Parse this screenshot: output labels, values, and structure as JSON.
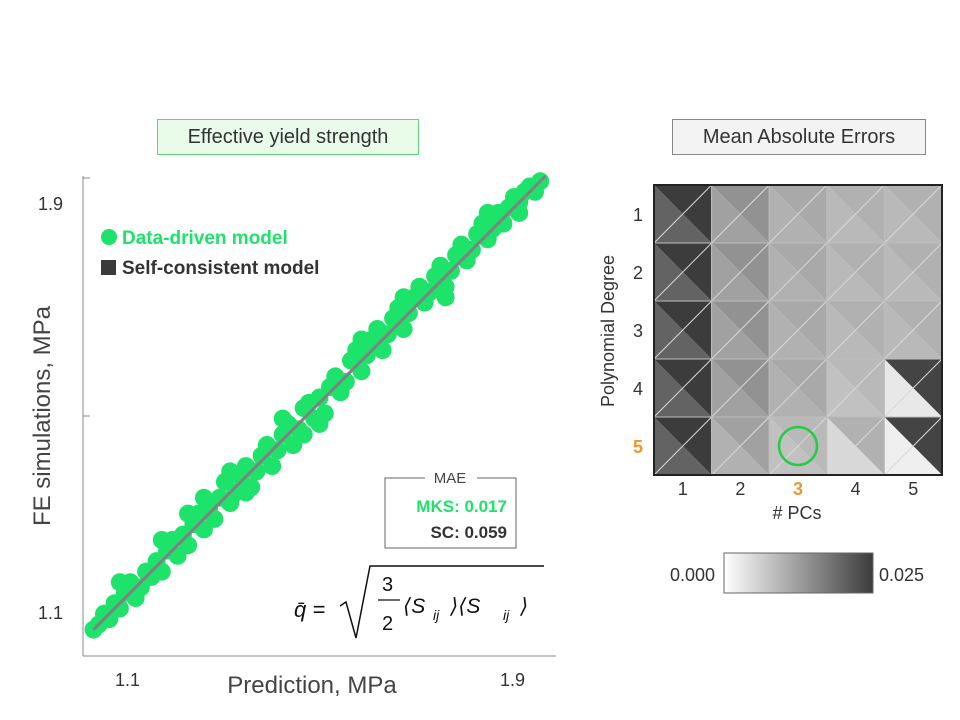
{
  "chart_data": [
    {
      "type": "scatter",
      "title": "Effective yield strength",
      "xlabel": "Prediction, MPa",
      "ylabel": "FE simulations, MPa",
      "xlim": [
        1.05,
        1.95
      ],
      "ylim": [
        1.02,
        1.93
      ],
      "x_ticks": [
        "1.1",
        "1.9"
      ],
      "y_ticks": [
        "1.1",
        "1.9"
      ],
      "legend": {
        "position": "top-left",
        "entries": [
          {
            "label": "Data-driven model",
            "color": "#1ee36b",
            "marker": "circle"
          },
          {
            "label": "Self-consistent model",
            "color": "#3a3a3a",
            "marker": "square"
          }
        ]
      },
      "mae_box": {
        "title": "MAE",
        "mks": "MKS: 0.017",
        "sc": "SC: 0.059"
      },
      "formula": {
        "lhs": "q̄ =",
        "num": "3",
        "den": "2",
        "body": "⟨S",
        "sub": "ij",
        "mid": "⟩⟨S",
        "sub2": "ij",
        "end": "⟩"
      },
      "fit_line": {
        "x": [
          1.07,
          1.93
        ],
        "y": [
          1.07,
          1.93
        ],
        "color": "#808080"
      },
      "series": [
        {
          "name": "Data-driven model",
          "color": "#1ee36b",
          "points": [
            [
              1.07,
              1.07
            ],
            [
              1.08,
              1.08
            ],
            [
              1.09,
              1.1
            ],
            [
              1.1,
              1.09
            ],
            [
              1.11,
              1.12
            ],
            [
              1.12,
              1.11
            ],
            [
              1.13,
              1.14
            ],
            [
              1.14,
              1.16
            ],
            [
              1.15,
              1.13
            ],
            [
              1.16,
              1.15
            ],
            [
              1.17,
              1.18
            ],
            [
              1.18,
              1.17
            ],
            [
              1.19,
              1.2
            ],
            [
              1.2,
              1.18
            ],
            [
              1.21,
              1.22
            ],
            [
              1.22,
              1.24
            ],
            [
              1.23,
              1.21
            ],
            [
              1.24,
              1.25
            ],
            [
              1.25,
              1.23
            ],
            [
              1.26,
              1.27
            ],
            [
              1.27,
              1.29
            ],
            [
              1.28,
              1.26
            ],
            [
              1.29,
              1.3
            ],
            [
              1.3,
              1.28
            ],
            [
              1.31,
              1.32
            ],
            [
              1.32,
              1.35
            ],
            [
              1.33,
              1.31
            ],
            [
              1.34,
              1.33
            ],
            [
              1.35,
              1.36
            ],
            [
              1.36,
              1.38
            ],
            [
              1.37,
              1.34
            ],
            [
              1.38,
              1.37
            ],
            [
              1.39,
              1.4
            ],
            [
              1.4,
              1.42
            ],
            [
              1.41,
              1.38
            ],
            [
              1.42,
              1.41
            ],
            [
              1.43,
              1.44
            ],
            [
              1.44,
              1.46
            ],
            [
              1.45,
              1.42
            ],
            [
              1.46,
              1.45
            ],
            [
              1.47,
              1.49
            ],
            [
              1.48,
              1.5
            ],
            [
              1.49,
              1.47
            ],
            [
              1.5,
              1.51
            ],
            [
              1.51,
              1.48
            ],
            [
              1.52,
              1.53
            ],
            [
              1.53,
              1.55
            ],
            [
              1.54,
              1.52
            ],
            [
              1.55,
              1.54
            ],
            [
              1.56,
              1.58
            ],
            [
              1.57,
              1.6
            ],
            [
              1.58,
              1.56
            ],
            [
              1.59,
              1.59
            ],
            [
              1.6,
              1.62
            ],
            [
              1.61,
              1.64
            ],
            [
              1.62,
              1.6
            ],
            [
              1.63,
              1.63
            ],
            [
              1.64,
              1.66
            ],
            [
              1.65,
              1.68
            ],
            [
              1.66,
              1.64
            ],
            [
              1.67,
              1.67
            ],
            [
              1.68,
              1.7
            ],
            [
              1.69,
              1.72
            ],
            [
              1.7,
              1.69
            ],
            [
              1.71,
              1.71
            ],
            [
              1.72,
              1.74
            ],
            [
              1.73,
              1.76
            ],
            [
              1.74,
              1.72
            ],
            [
              1.75,
              1.75
            ],
            [
              1.76,
              1.78
            ],
            [
              1.77,
              1.8
            ],
            [
              1.78,
              1.77
            ],
            [
              1.79,
              1.79
            ],
            [
              1.8,
              1.82
            ],
            [
              1.81,
              1.84
            ],
            [
              1.82,
              1.81
            ],
            [
              1.83,
              1.83
            ],
            [
              1.84,
              1.86
            ],
            [
              1.85,
              1.84
            ],
            [
              1.86,
              1.87
            ],
            [
              1.87,
              1.89
            ],
            [
              1.88,
              1.88
            ],
            [
              1.89,
              1.9
            ],
            [
              1.9,
              1.91
            ],
            [
              1.91,
              1.9
            ],
            [
              1.92,
              1.92
            ],
            [
              1.12,
              1.16
            ],
            [
              1.2,
              1.24
            ],
            [
              1.28,
              1.32
            ],
            [
              1.36,
              1.33
            ],
            [
              1.43,
              1.47
            ],
            [
              1.5,
              1.46
            ],
            [
              1.58,
              1.62
            ],
            [
              1.66,
              1.7
            ],
            [
              1.74,
              1.7
            ],
            [
              1.82,
              1.86
            ],
            [
              1.88,
              1.86
            ],
            [
              1.25,
              1.29
            ],
            [
              1.33,
              1.37
            ],
            [
              1.47,
              1.44
            ]
          ]
        }
      ]
    },
    {
      "type": "heatmap",
      "title": "Mean Absolute Errors",
      "xlabel": "# PCs",
      "ylabel": "Polynomial Degree",
      "x_categories": [
        "1",
        "2",
        "3",
        "4",
        "5"
      ],
      "y_categories": [
        "1",
        "2",
        "3",
        "4",
        "5"
      ],
      "highlight": {
        "x": "3",
        "y": "5",
        "color": "#f0962e",
        "marker_color": "#22cc44"
      },
      "values": [
        [
          0.02,
          0.012,
          0.01,
          0.009,
          0.009
        ],
        [
          0.02,
          0.012,
          0.01,
          0.009,
          0.009
        ],
        [
          0.02,
          0.012,
          0.01,
          0.009,
          0.009
        ],
        [
          0.02,
          0.012,
          0.01,
          0.008,
          0.003
        ],
        [
          0.02,
          0.01,
          0.008,
          0.005,
          0.002
        ]
      ],
      "sc_values": [
        [
          0.025,
          0.014,
          0.011,
          0.01,
          0.01
        ],
        [
          0.025,
          0.014,
          0.011,
          0.01,
          0.01
        ],
        [
          0.025,
          0.014,
          0.011,
          0.01,
          0.01
        ],
        [
          0.025,
          0.014,
          0.011,
          0.009,
          0.024
        ],
        [
          0.025,
          0.012,
          0.009,
          0.01,
          0.024
        ]
      ],
      "colorbar": {
        "min": 0.0,
        "max": 0.025,
        "min_label": "0.000",
        "max_label": "0.025"
      }
    }
  ]
}
